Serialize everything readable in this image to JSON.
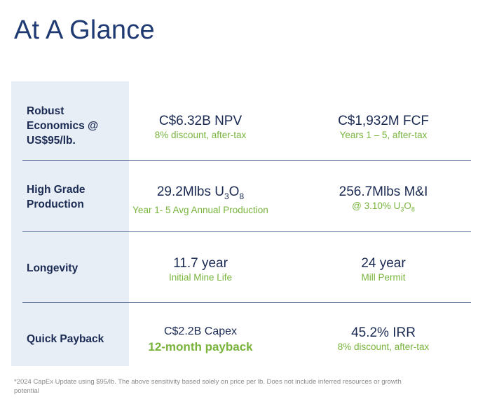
{
  "title": "At A Glance",
  "rows": [
    {
      "label": "Robust Economics @ US$95/lb.",
      "left": {
        "main": "C$6.32B NPV",
        "sub": "8% discount, after-tax"
      },
      "right": {
        "main": "C$1,932M FCF",
        "sub": "Years 1 – 5, after-tax"
      }
    },
    {
      "label": "High Grade Production",
      "left": {
        "main_pre": "29.2Mlbs U",
        "main_s1": "3",
        "main_mid": "O",
        "main_s2": "8",
        "sub": "Year 1- 5 Avg Annual Production"
      },
      "right": {
        "main": "256.7Mlbs M&I",
        "sub_pre": "@ 3.10% U",
        "sub_s1": "3",
        "sub_mid": "O",
        "sub_s2": "8"
      }
    },
    {
      "label": "Longevity",
      "left": {
        "main": "11.7 year",
        "sub": "Initial Mine Life"
      },
      "right": {
        "main": "24 year",
        "sub": "Mill Permit"
      }
    },
    {
      "label": "Quick Payback",
      "left": {
        "main": "C$2.2B Capex",
        "sub": "12-month payback"
      },
      "right": {
        "main": "45.2% IRR",
        "sub": "8% discount, after-tax"
      }
    }
  ],
  "footnote": "*2024 CapEx Update using $95/lb. The above sensitivity based solely on price per lb. Does not include inferred resources or growth potential"
}
